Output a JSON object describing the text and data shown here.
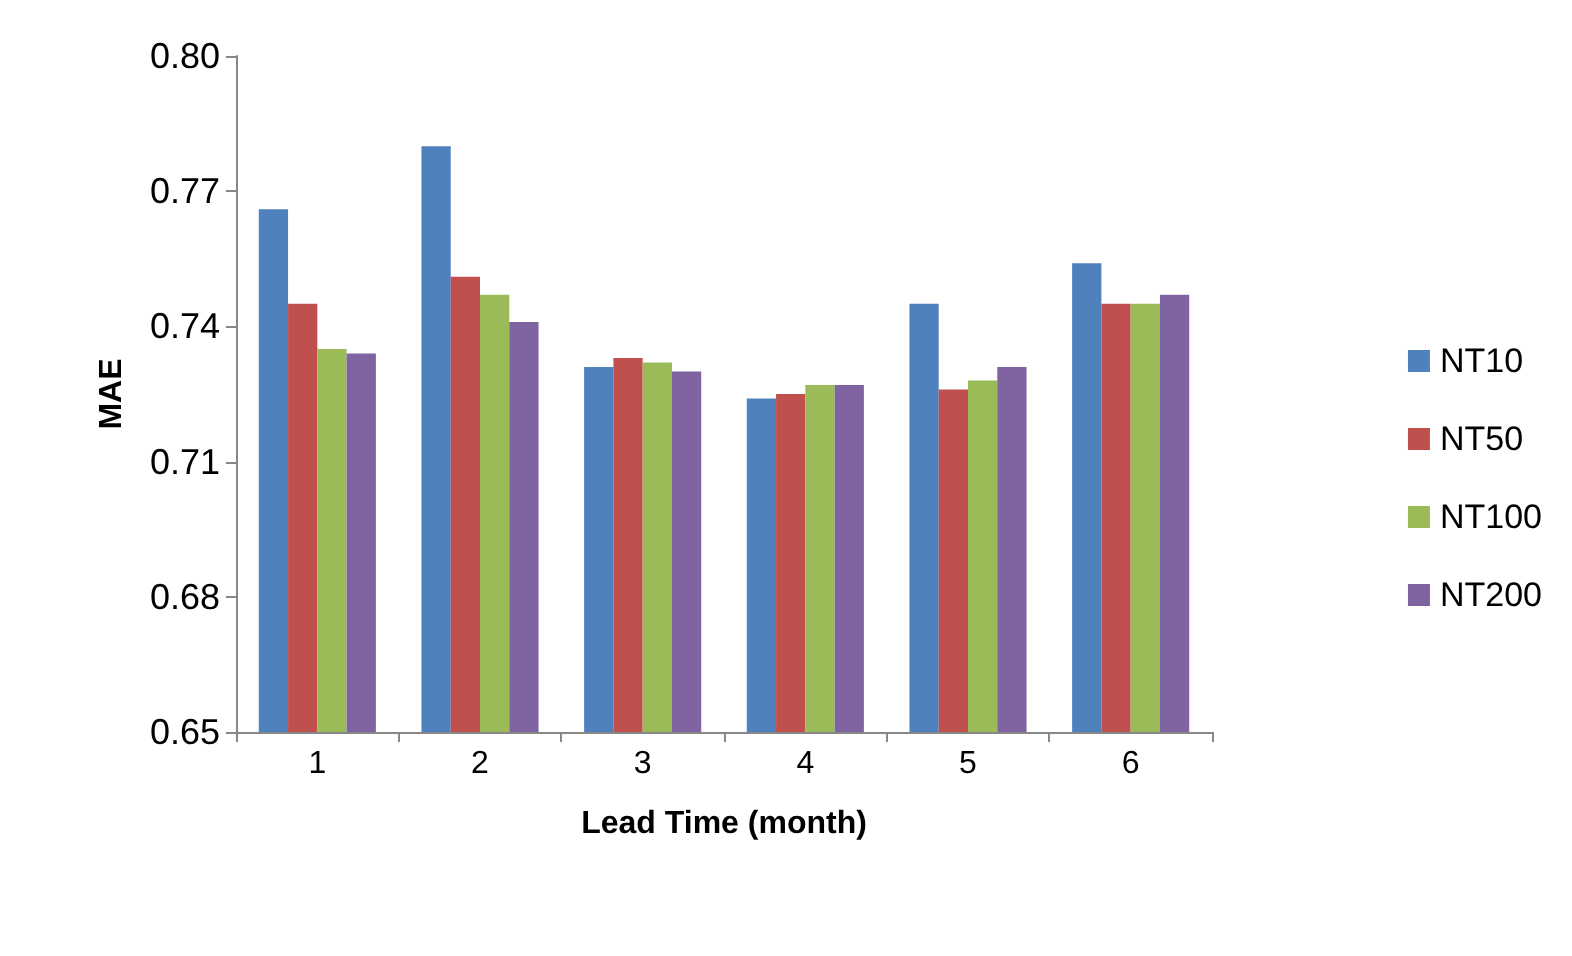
{
  "chart_data": {
    "type": "bar",
    "xlabel": "Lead Time (month)",
    "ylabel": "MAE",
    "categories": [
      "1",
      "2",
      "3",
      "4",
      "5",
      "6"
    ],
    "series": [
      {
        "name": "NT10",
        "color": "#4f81bd",
        "values": [
          0.766,
          0.78,
          0.731,
          0.724,
          0.745,
          0.754
        ]
      },
      {
        "name": "NT50",
        "color": "#c0504d",
        "values": [
          0.745,
          0.751,
          0.733,
          0.725,
          0.726,
          0.745
        ]
      },
      {
        "name": "NT100",
        "color": "#9bbb59",
        "values": [
          0.735,
          0.747,
          0.732,
          0.727,
          0.728,
          0.745
        ]
      },
      {
        "name": "NT200",
        "color": "#8064a2",
        "values": [
          0.734,
          0.741,
          0.73,
          0.727,
          0.731,
          0.747
        ]
      }
    ],
    "ylim": [
      0.65,
      0.8
    ],
    "yticks": [
      0.65,
      0.68,
      0.71,
      0.74,
      0.77,
      {
        "value": 0.8,
        "label": "0.80"
      }
    ],
    "grid": false,
    "legend": "right"
  }
}
